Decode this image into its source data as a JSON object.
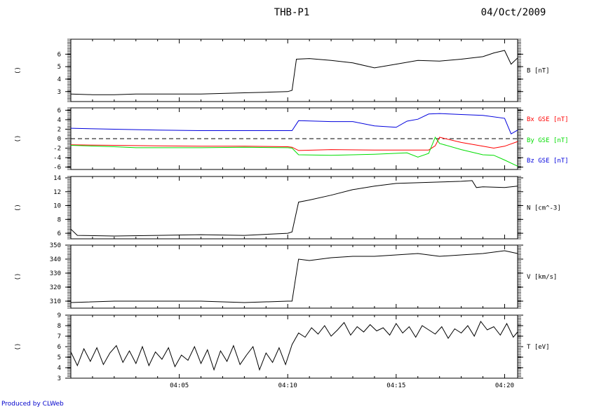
{
  "header": {
    "title": "THB-P1",
    "date": "04/Oct/2009"
  },
  "footer": {
    "credit": "Produced by CLWeb"
  },
  "chart_data": [
    {
      "type": "line",
      "panel": "B",
      "ylabel_left": "()",
      "ylim": [
        2.2,
        7.2
      ],
      "yticks": [
        3,
        4,
        5,
        6
      ],
      "xlim": [
        0,
        20.6
      ],
      "series": [
        {
          "name": "B [nT]",
          "color": "#000000",
          "x": [
            0,
            1,
            2,
            3,
            4,
            5,
            6,
            7,
            8,
            9,
            10,
            10.2,
            10.4,
            11,
            12,
            13,
            14,
            15,
            16,
            17,
            18,
            19,
            19.5,
            20,
            20.3,
            20.6
          ],
          "y": [
            2.8,
            2.75,
            2.75,
            2.8,
            2.8,
            2.8,
            2.8,
            2.85,
            2.9,
            2.95,
            3.0,
            3.1,
            5.6,
            5.65,
            5.5,
            5.3,
            4.9,
            5.2,
            5.5,
            5.45,
            5.6,
            5.8,
            6.1,
            6.3,
            5.2,
            5.7
          ]
        }
      ]
    },
    {
      "type": "line",
      "panel": "B GSE",
      "ylabel_left": "()",
      "ylim": [
        -6.5,
        6.5
      ],
      "yticks": [
        -6,
        -4,
        -2,
        0,
        2,
        4,
        6
      ],
      "xlim": [
        0,
        20.6
      ],
      "zero_line": true,
      "series": [
        {
          "name": "Bx GSE [nT]",
          "color": "#ff0000",
          "x": [
            0,
            2,
            4,
            6,
            8,
            10,
            10.2,
            10.5,
            12,
            14,
            15.5,
            16.5,
            16.8,
            17,
            18,
            19,
            19.5,
            20,
            20.6
          ],
          "y": [
            -1.3,
            -1.4,
            -1.5,
            -1.6,
            -1.6,
            -1.7,
            -1.8,
            -2.5,
            -2.3,
            -2.4,
            -2.4,
            -2.4,
            -1.5,
            0.3,
            -0.8,
            -1.6,
            -2.0,
            -1.6,
            -0.6
          ]
        },
        {
          "name": "By GSE [nT]",
          "color": "#00dd00",
          "x": [
            0,
            2,
            3,
            4,
            6,
            8,
            10,
            10.2,
            10.5,
            12,
            14,
            15.5,
            16,
            16.5,
            16.8,
            17,
            18,
            19,
            19.5,
            20,
            20.6
          ],
          "y": [
            -1.4,
            -1.7,
            -1.9,
            -1.9,
            -1.9,
            -1.8,
            -1.9,
            -2.0,
            -3.4,
            -3.5,
            -3.3,
            -3.0,
            -3.9,
            -3.1,
            0.3,
            -1.0,
            -2.3,
            -3.4,
            -3.5,
            -4.5,
            -5.8
          ]
        },
        {
          "name": "Bz GSE [nT]",
          "color": "#0000dd",
          "x": [
            0,
            2,
            4,
            6,
            8,
            10,
            10.2,
            10.5,
            12,
            13,
            14,
            15,
            15.5,
            16,
            16.5,
            17,
            18,
            19,
            20,
            20.3,
            20.6
          ],
          "y": [
            2.2,
            2.0,
            1.8,
            1.7,
            1.7,
            1.7,
            1.7,
            3.8,
            3.6,
            3.6,
            2.7,
            2.4,
            3.7,
            4.1,
            5.2,
            5.3,
            5.1,
            4.9,
            4.3,
            1.0,
            1.8
          ]
        }
      ]
    },
    {
      "type": "line",
      "panel": "N",
      "ylabel_left": "()",
      "ylim": [
        5.2,
        14.2
      ],
      "yticks": [
        6,
        8,
        10,
        12,
        14
      ],
      "xlim": [
        0,
        20.6
      ],
      "series": [
        {
          "name": "N [cm^-3]",
          "color": "#000000",
          "x": [
            0,
            0.3,
            2,
            4,
            6,
            8,
            10,
            10.2,
            10.5,
            11,
            12,
            13,
            14,
            15,
            16,
            17,
            18,
            18.5,
            18.7,
            19,
            20,
            20.6
          ],
          "y": [
            6.6,
            5.7,
            5.6,
            5.7,
            5.8,
            5.7,
            6.0,
            6.2,
            10.5,
            10.8,
            11.5,
            12.3,
            12.8,
            13.2,
            13.3,
            13.4,
            13.5,
            13.6,
            12.6,
            12.7,
            12.6,
            12.8
          ]
        }
      ]
    },
    {
      "type": "line",
      "panel": "V",
      "ylabel_left": "()",
      "ylim": [
        305,
        350
      ],
      "yticks": [
        310,
        320,
        330,
        340,
        350
      ],
      "xlim": [
        0,
        20.6
      ],
      "series": [
        {
          "name": "V [km/s]",
          "color": "#000000",
          "x": [
            0,
            2,
            4,
            6,
            8,
            10,
            10.2,
            10.5,
            11,
            12,
            13,
            14,
            15,
            16,
            17,
            18,
            19,
            20,
            20.6
          ],
          "y": [
            309,
            310,
            310,
            310,
            309,
            310,
            310,
            340,
            339,
            341,
            342,
            342,
            343,
            344,
            342,
            343,
            344,
            346,
            344
          ]
        }
      ]
    },
    {
      "type": "line",
      "panel": "T",
      "ylabel_left": "()",
      "ylim": [
        3,
        9
      ],
      "yticks": [
        3,
        4,
        5,
        6,
        7,
        8,
        9
      ],
      "xlim": [
        0,
        20.6
      ],
      "series": [
        {
          "name": "T [eV]",
          "color": "#000000",
          "x": [
            0,
            0.3,
            0.6,
            0.9,
            1.2,
            1.5,
            1.8,
            2.1,
            2.4,
            2.7,
            3,
            3.3,
            3.6,
            3.9,
            4.2,
            4.5,
            4.8,
            5.1,
            5.4,
            5.7,
            6,
            6.3,
            6.6,
            6.9,
            7.2,
            7.5,
            7.8,
            8.1,
            8.4,
            8.7,
            9,
            9.3,
            9.6,
            9.9,
            10.2,
            10.5,
            10.8,
            11.1,
            11.4,
            11.7,
            12,
            12.3,
            12.6,
            12.9,
            13.2,
            13.5,
            13.8,
            14.1,
            14.4,
            14.7,
            15,
            15.3,
            15.6,
            15.9,
            16.2,
            16.5,
            16.8,
            17.1,
            17.4,
            17.7,
            18,
            18.3,
            18.6,
            18.9,
            19.2,
            19.5,
            19.8,
            20.1,
            20.4,
            20.6
          ],
          "y": [
            5.5,
            4.2,
            5.8,
            4.6,
            5.9,
            4.3,
            5.4,
            6.1,
            4.5,
            5.6,
            4.4,
            6.0,
            4.2,
            5.5,
            4.8,
            5.9,
            4.1,
            5.2,
            4.7,
            6.0,
            4.4,
            5.7,
            3.8,
            5.6,
            4.6,
            6.1,
            4.3,
            5.2,
            6.0,
            3.8,
            5.4,
            4.5,
            5.9,
            4.3,
            6.2,
            7.3,
            6.9,
            7.8,
            7.2,
            8.0,
            7.0,
            7.6,
            8.3,
            7.1,
            7.9,
            7.4,
            8.1,
            7.5,
            7.8,
            7.1,
            8.2,
            7.3,
            7.9,
            6.9,
            8.0,
            7.6,
            7.2,
            7.9,
            6.8,
            7.7,
            7.3,
            8.0,
            7.0,
            8.4,
            7.6,
            7.9,
            7.1,
            8.2,
            6.9,
            7.4
          ]
        }
      ]
    }
  ],
  "x_axis": {
    "tick_labels": [
      "04:05",
      "04:10",
      "04:15",
      "04:20"
    ],
    "tick_values": [
      5,
      10,
      15,
      20
    ]
  },
  "colors": {
    "axis": "#000000",
    "bx": "#ff0000",
    "by": "#00dd00",
    "bz": "#0000dd",
    "credit": "#0000cc"
  }
}
